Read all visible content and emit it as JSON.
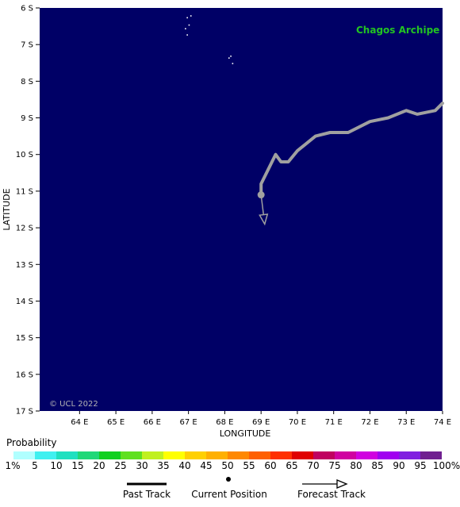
{
  "map": {
    "place_label": "Chagos Archipe",
    "copyright": "© UCL 2022",
    "xlabel": "LONGITUDE",
    "ylabel": "LATITUDE",
    "colors": {
      "ocean": "#000066",
      "past_track": "#a0a0a0",
      "place_label": "#22c322",
      "copyright": "#b4b4b4"
    },
    "lon_ticks": [
      "64 E",
      "65 E",
      "66 E",
      "67 E",
      "68 E",
      "69 E",
      "70 E",
      "71 E",
      "72 E",
      "73 E",
      "74 E"
    ],
    "lat_ticks": [
      "6 S",
      "7 S",
      "8 S",
      "9 S",
      "10 S",
      "11 S",
      "12 S",
      "13 S",
      "14 S",
      "15 S",
      "16 S",
      "17 S"
    ],
    "lon_range": [
      62.9,
      74.0
    ],
    "lat_range": [
      -6.0,
      -17.0
    ],
    "past_track": [
      [
        74.0,
        -8.6
      ],
      [
        73.8,
        -8.8
      ],
      [
        73.3,
        -8.9
      ],
      [
        73.0,
        -8.8
      ],
      [
        72.5,
        -9.0
      ],
      [
        72.0,
        -9.1
      ],
      [
        71.4,
        -9.4
      ],
      [
        70.9,
        -9.4
      ],
      [
        70.5,
        -9.5
      ],
      [
        70.0,
        -9.9
      ],
      [
        69.75,
        -10.2
      ],
      [
        69.55,
        -10.2
      ],
      [
        69.4,
        -10.0
      ],
      [
        69.0,
        -10.8
      ],
      [
        69.0,
        -11.1
      ]
    ],
    "current_position": [
      69.0,
      -11.1
    ],
    "forecast_track": [
      [
        69.0,
        -11.1
      ],
      [
        69.1,
        -11.9
      ]
    ],
    "islands": [
      [
        66.95,
        -6.25
      ],
      [
        67.05,
        -6.2
      ],
      [
        66.9,
        -6.55
      ],
      [
        67.0,
        -6.45
      ],
      [
        66.95,
        -6.72
      ],
      [
        68.15,
        -7.3
      ],
      [
        68.1,
        -7.35
      ],
      [
        68.2,
        -7.5
      ]
    ]
  },
  "probability": {
    "title": "Probability",
    "labels": [
      "1%",
      "5",
      "10",
      "15",
      "20",
      "25",
      "30",
      "35",
      "40",
      "45",
      "50",
      "55",
      "60",
      "65",
      "70",
      "75",
      "80",
      "85",
      "90",
      "95",
      "100%"
    ],
    "colors": [
      "#b0ffff",
      "#40f0f0",
      "#20e0c0",
      "#20d878",
      "#10d020",
      "#60e020",
      "#c0f020",
      "#ffff00",
      "#ffd000",
      "#ffb000",
      "#ff8800",
      "#ff6000",
      "#ff3000",
      "#e00000",
      "#c00060",
      "#d000a0",
      "#d000e0",
      "#a000f0",
      "#8020e0",
      "#702090"
    ]
  },
  "legend": {
    "past_track": "Past Track",
    "current_position": "Current Position",
    "forecast_track": "Forecast Track"
  }
}
